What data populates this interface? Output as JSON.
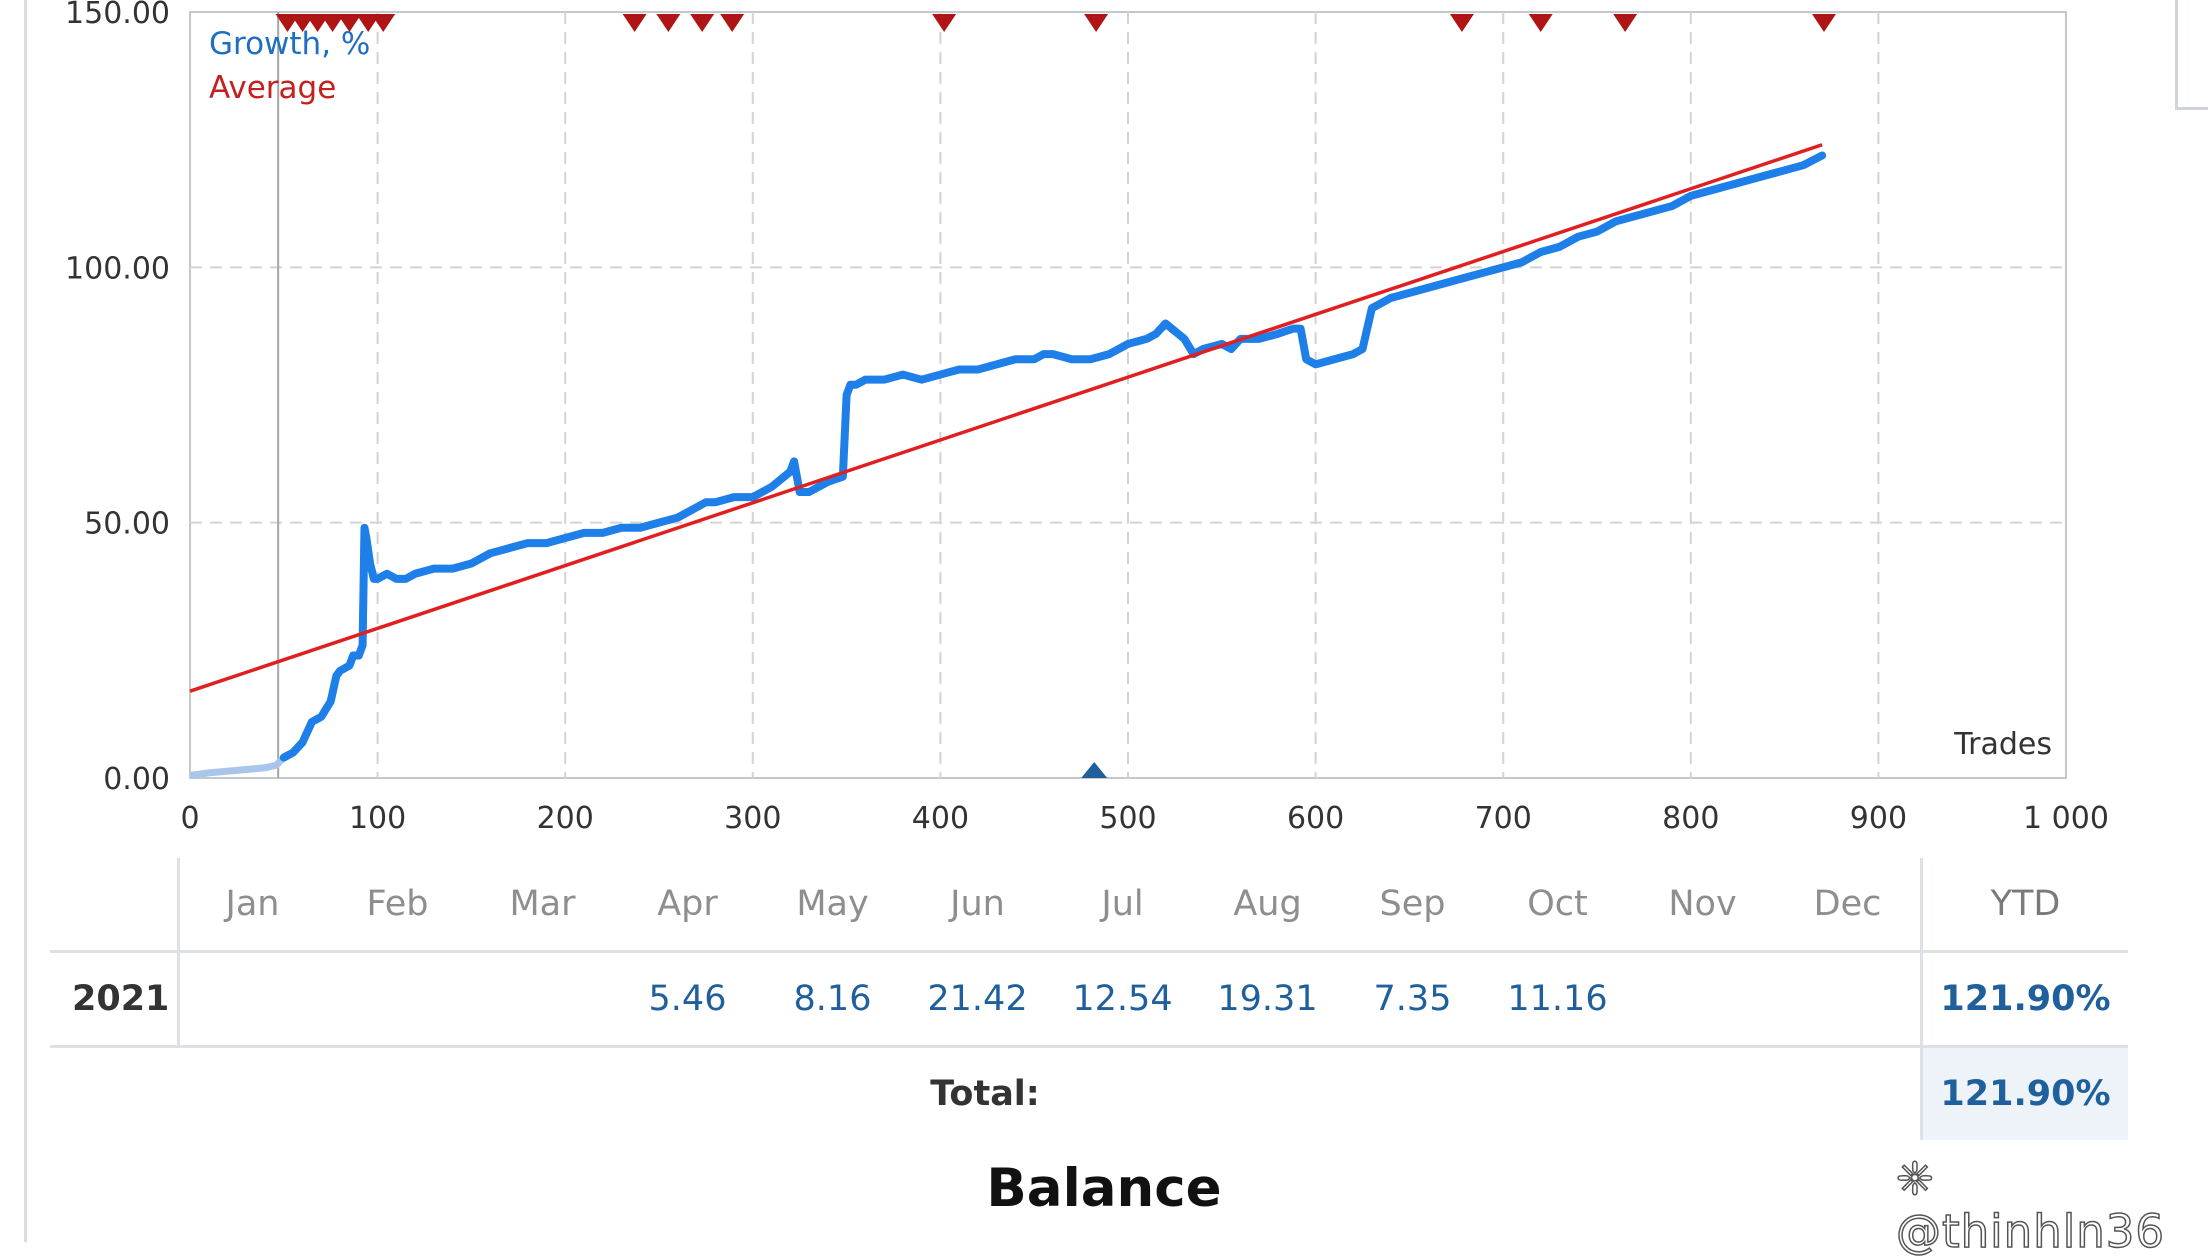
{
  "chart_data": {
    "type": "line",
    "xlabel": "Trades",
    "xlim": [
      0,
      1000
    ],
    "ylim": [
      0,
      150
    ],
    "x_ticks": [
      0,
      100,
      200,
      300,
      400,
      500,
      600,
      700,
      800,
      900,
      1000
    ],
    "x_tick_labels": [
      "0",
      "100",
      "200",
      "300",
      "400",
      "500",
      "600",
      "700",
      "800",
      "900",
      "1 000"
    ],
    "y_ticks": [
      0,
      50,
      100,
      150
    ],
    "y_tick_labels": [
      "0.00",
      "50.00",
      "100.00",
      "150.00"
    ],
    "grid": true,
    "legend_position": "top-left",
    "series": [
      {
        "name": "Growth, %",
        "color": "#1e7fe8",
        "x": [
          0,
          10,
          25,
          40,
          46,
          50,
          55,
          60,
          65,
          70,
          75,
          78,
          80,
          85,
          87,
          90,
          92,
          93,
          94,
          96,
          98,
          100,
          105,
          110,
          115,
          120,
          130,
          140,
          150,
          160,
          170,
          180,
          190,
          200,
          210,
          220,
          230,
          240,
          250,
          260,
          270,
          275,
          280,
          290,
          300,
          310,
          320,
          322,
          325,
          330,
          340,
          348,
          350,
          352,
          355,
          360,
          370,
          380,
          390,
          400,
          410,
          420,
          430,
          440,
          450,
          455,
          460,
          470,
          480,
          490,
          500,
          510,
          515,
          520,
          530,
          535,
          540,
          550,
          555,
          560,
          570,
          580,
          588,
          592,
          595,
          600,
          610,
          620,
          625,
          630,
          635,
          640,
          650,
          660,
          670,
          680,
          690,
          700,
          710,
          720,
          730,
          740,
          750,
          760,
          770,
          780,
          790,
          800,
          810,
          820,
          830,
          840,
          850,
          860,
          870
        ],
        "y": [
          0.5,
          1,
          1.5,
          2,
          2.5,
          4,
          5,
          7,
          11,
          12,
          15,
          20,
          21,
          22,
          24,
          24,
          26,
          49,
          47,
          42,
          39,
          39,
          40,
          39,
          39,
          40,
          41,
          41,
          42,
          44,
          45,
          46,
          46,
          47,
          48,
          48,
          49,
          49,
          50,
          51,
          53,
          54,
          54,
          55,
          55,
          57,
          60,
          62,
          56,
          56,
          58,
          59,
          75,
          77,
          77,
          78,
          78,
          79,
          78,
          79,
          80,
          80,
          81,
          82,
          82,
          83,
          83,
          82,
          82,
          83,
          85,
          86,
          87,
          89,
          86,
          83,
          84,
          85,
          84,
          86,
          86,
          87,
          88,
          88,
          82,
          81,
          82,
          83,
          84,
          92,
          93,
          94,
          95,
          96,
          97,
          98,
          99,
          100,
          101,
          103,
          104,
          106,
          107,
          109,
          110,
          111,
          112,
          114,
          115,
          116,
          117,
          118,
          119,
          120,
          121.9
        ]
      },
      {
        "name": "Average",
        "color": "#e02020",
        "x": [
          0,
          870
        ],
        "y": [
          17,
          124
        ]
      }
    ],
    "markers_top": [
      52,
      60,
      68,
      76,
      85,
      95,
      103,
      237,
      255,
      273,
      289,
      402,
      483,
      678,
      720,
      765,
      871
    ],
    "markers_bottom": [
      482
    ],
    "highlight_line_x": 47
  },
  "monthly_table": {
    "months": [
      "Jan",
      "Feb",
      "Mar",
      "Apr",
      "May",
      "Jun",
      "Jul",
      "Aug",
      "Sep",
      "Oct",
      "Nov",
      "Dec"
    ],
    "ytd_label": "YTD",
    "year": "2021",
    "values": [
      "",
      "",
      "",
      "5.46",
      "8.16",
      "21.42",
      "12.54",
      "19.31",
      "7.35",
      "11.16",
      "",
      ""
    ],
    "ytd_value": "121.90%",
    "total_label": "Total:",
    "total_value": "121.90%"
  },
  "section_title": "Balance",
  "watermark": "@thinhln36"
}
